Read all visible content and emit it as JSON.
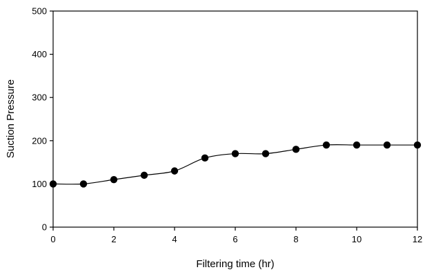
{
  "chart_data": {
    "type": "line",
    "title": "",
    "xlabel": "Filtering time (hr)",
    "ylabel": "Suction Pressure",
    "xlim": [
      0,
      12
    ],
    "ylim": [
      0,
      500
    ],
    "xticks": [
      0,
      2,
      4,
      6,
      8,
      10,
      12
    ],
    "yticks": [
      0,
      100,
      200,
      300,
      400,
      500
    ],
    "grid": false,
    "legend": "none",
    "smoothed": true,
    "colors": {
      "line": "#000000",
      "marker": "#000000",
      "axis": "#000000"
    },
    "series": [
      {
        "x": [
          0,
          1,
          2,
          3,
          4,
          5,
          6,
          7,
          8,
          9,
          10,
          11,
          12
        ],
        "y": [
          100,
          100,
          110,
          120,
          130,
          160,
          170,
          170,
          180,
          190,
          190,
          190,
          190
        ]
      }
    ]
  }
}
